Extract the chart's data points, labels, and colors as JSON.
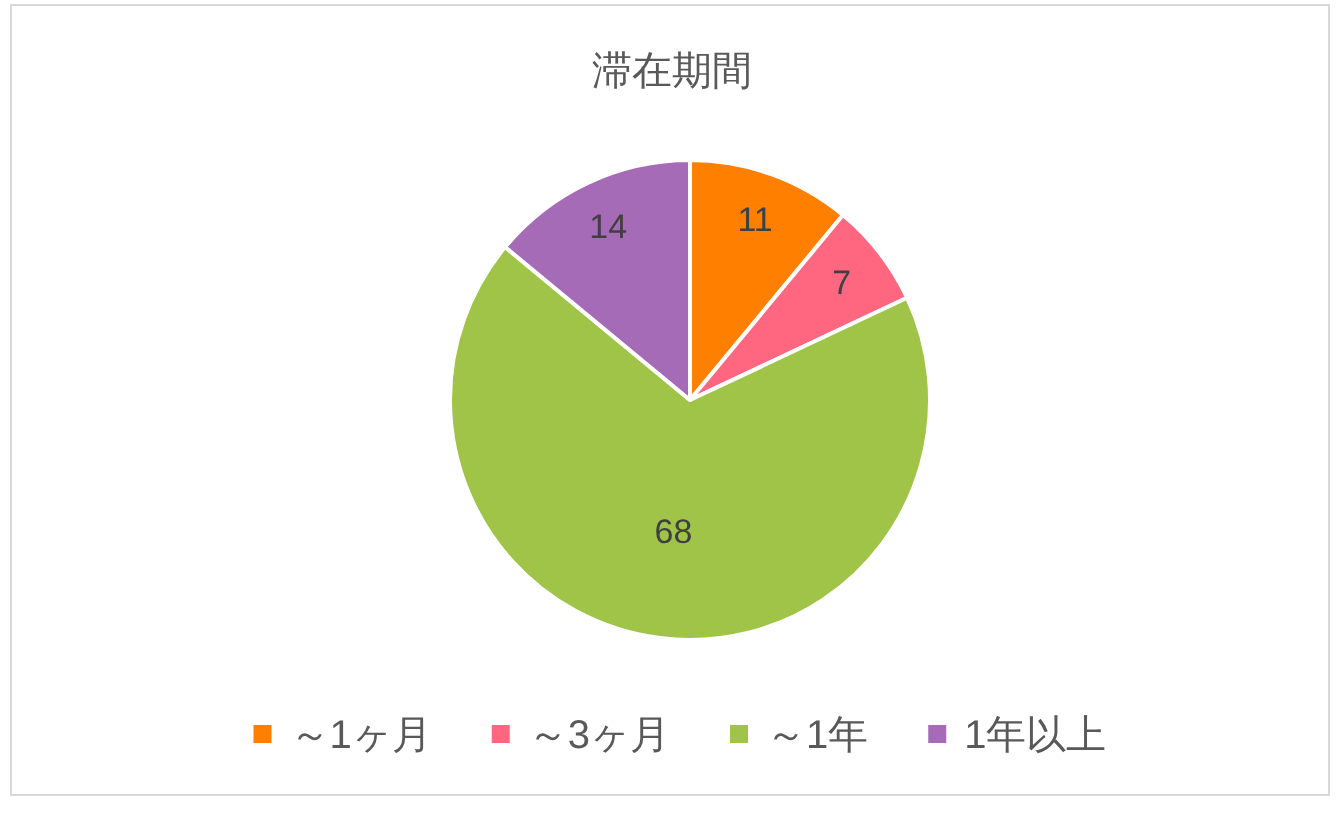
{
  "chart_data": {
    "type": "pie",
    "title": "滞在期間",
    "categories": [
      "～1ヶ月",
      "～3ヶ月",
      "～1年",
      "1年以上"
    ],
    "values": [
      11,
      7,
      68,
      14
    ],
    "colors": [
      "#ff7f00",
      "#ff6680",
      "#a0c448",
      "#a66bb6"
    ],
    "data_labels": true,
    "legend": "bottom"
  }
}
